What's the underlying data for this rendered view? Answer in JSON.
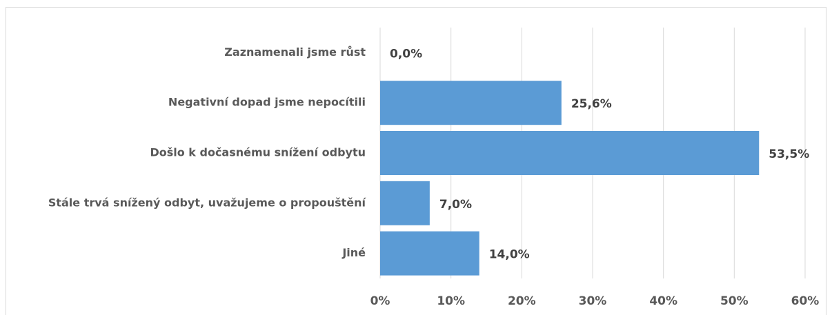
{
  "chart_data": {
    "type": "barh",
    "categories": [
      "Zaznamenali jsme růst",
      "Negativní dopad jsme nepocítili",
      "Došlo k dočasnému snížení odbytu",
      "Stále trvá snížený odbyt, uvažujeme o propouštění",
      "Jiné"
    ],
    "values": [
      0.0,
      25.6,
      53.5,
      7.0,
      14.0
    ],
    "value_labels": [
      "0,0%",
      "25,6%",
      "53,5%",
      "7,0%",
      "14,0%"
    ],
    "color": "#5b9bd5",
    "xlim": [
      0,
      60
    ],
    "xticks": [
      {
        "value": 0,
        "label": "0%"
      },
      {
        "value": 10,
        "label": "10%"
      },
      {
        "value": 20,
        "label": "20%"
      },
      {
        "value": 30,
        "label": "30%"
      },
      {
        "value": 40,
        "label": "40%"
      },
      {
        "value": 50,
        "label": "50%"
      },
      {
        "value": 60,
        "label": "60%"
      }
    ],
    "grid": true
  }
}
